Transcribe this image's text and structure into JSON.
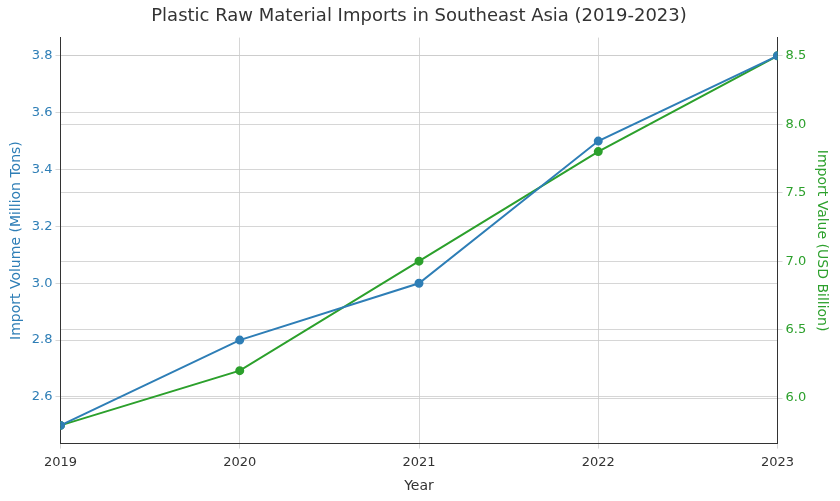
{
  "chart_data": {
    "type": "line",
    "title": "Plastic Raw Material Imports in Southeast Asia (2019-2023)",
    "x_label": "Year",
    "y_label": "Import Volume (Million Tons)",
    "y2_label": "Import Value (USD Billion)",
    "categories": [
      "2019",
      "2020",
      "2021",
      "2022",
      "2023"
    ],
    "series": [
      {
        "color": "#2e7eb6",
        "values": [
          2.5,
          2.8,
          3.0,
          3.5,
          3.8
        ],
        "marker": "circle",
        "line_style": "solid",
        "axis": "y"
      },
      {
        "color": "#2ca02c",
        "values": [
          5.8,
          6.2,
          7.0,
          7.8,
          8.5
        ],
        "marker": "circle",
        "line_style": "solid",
        "axis": "y2"
      }
    ],
    "ylim": [
      2.436,
      3.864
    ],
    "yticks": [
      2.6,
      2.8,
      {
        "value": 3.0,
        "label": "3.0"
      },
      3.2,
      3.4,
      3.6,
      3.8
    ],
    "y2lim": [
      5.667,
      8.633
    ],
    "y2ticks": [
      {
        "value": 6.0,
        "label": "6.0"
      },
      6.5,
      {
        "value": 7.0,
        "label": "7.0"
      },
      7.5,
      {
        "value": 8.0,
        "label": "8.0"
      },
      8.5
    ],
    "grid": true
  }
}
